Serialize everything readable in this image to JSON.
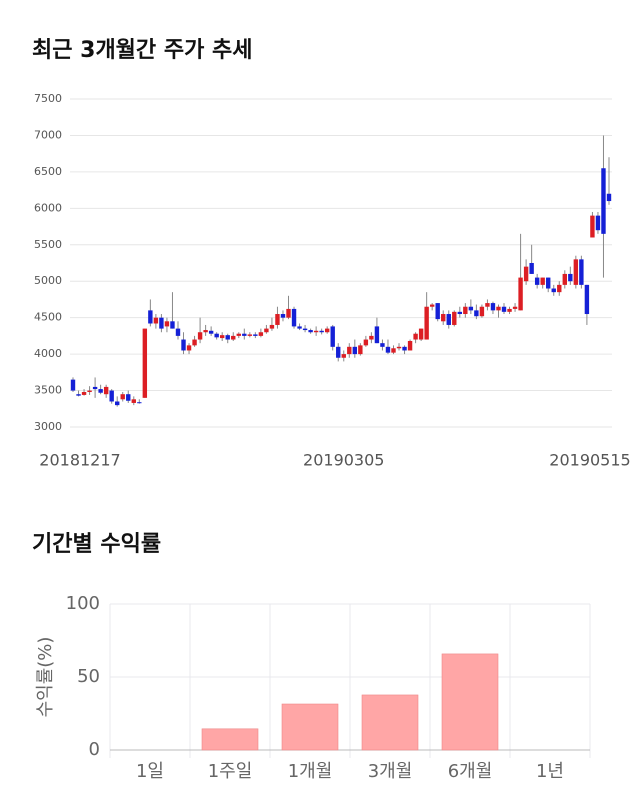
{
  "chart_data": [
    {
      "type": "candlestick",
      "title": "최근 3개월간 주가 추세",
      "categories": [
        "20181217",
        null,
        null,
        null,
        null,
        null,
        null,
        null,
        null,
        null,
        null,
        null,
        null,
        null,
        null,
        null,
        null,
        null,
        null,
        null,
        null,
        null,
        null,
        null,
        null,
        null,
        null,
        null,
        null,
        null,
        null,
        null,
        null,
        null,
        null,
        null,
        null,
        null,
        null,
        null,
        null,
        null,
        null,
        null,
        null,
        null,
        null,
        null,
        null,
        "20190305",
        null,
        null,
        null,
        null,
        null,
        null,
        null,
        null,
        null,
        null,
        null,
        null,
        null,
        null,
        null,
        null,
        null,
        null,
        null,
        null,
        null,
        null,
        null,
        null,
        null,
        null,
        null,
        null,
        null,
        null,
        null,
        null,
        null,
        null,
        null,
        null,
        null,
        null,
        null,
        null,
        null,
        null,
        null,
        null,
        null,
        null,
        null,
        "20190515"
      ],
      "open": [
        3650,
        3450,
        3440,
        3480,
        3550,
        3520,
        3450,
        3500,
        3350,
        3380,
        3450,
        3330,
        3340,
        3400,
        4600,
        4420,
        4500,
        4380,
        4450,
        4350,
        4200,
        4050,
        4120,
        4200,
        4300,
        4320,
        4280,
        4220,
        4260,
        4200,
        4250,
        4280,
        4250,
        4270,
        4250,
        4300,
        4350,
        4400,
        4550,
        4500,
        4620,
        4380,
        4350,
        4330,
        4300,
        4320,
        4300,
        4380,
        4100,
        3950,
        4000,
        4100,
        4000,
        4120,
        4200,
        4380,
        4150,
        4100,
        4020,
        4080,
        4100,
        4050,
        4200,
        4200,
        4200,
        4650,
        4700,
        4450,
        4550,
        4400,
        4580,
        4550,
        4650,
        4600,
        4520,
        4650,
        4700,
        4600,
        4650,
        4580,
        4620,
        4600,
        5000,
        5250,
        5050,
        4950,
        5050,
        4900,
        4850,
        4950,
        5100,
        4950,
        5300,
        4950,
        5600,
        5900,
        6550,
        6200
      ],
      "high": [
        3680,
        3500,
        3520,
        3560,
        3680,
        3580,
        3580,
        3520,
        3420,
        3480,
        3500,
        3420,
        3380,
        4350,
        4750,
        4550,
        4550,
        4500,
        4850,
        4450,
        4300,
        4150,
        4250,
        4500,
        4400,
        4380,
        4300,
        4300,
        4280,
        4300,
        4300,
        4350,
        4300,
        4300,
        4350,
        4400,
        4500,
        4650,
        4600,
        4800,
        4650,
        4420,
        4400,
        4350,
        4380,
        4350,
        4380,
        4400,
        4150,
        4050,
        4150,
        4200,
        4150,
        4250,
        4300,
        4500,
        4200,
        4200,
        4120,
        4150,
        4120,
        4200,
        4300,
        4350,
        4850,
        4700,
        4700,
        4600,
        4600,
        4600,
        4650,
        4700,
        4750,
        4680,
        4680,
        4750,
        4720,
        4680,
        4700,
        4650,
        4700,
        5650,
        5300,
        5500,
        5100,
        5050,
        5050,
        4950,
        5000,
        5150,
        5200,
        5350,
        5350,
        4950,
        5950,
        5950,
        7000,
        6700
      ],
      "low": [
        3480,
        3420,
        3430,
        3440,
        3400,
        3450,
        3400,
        3320,
        3280,
        3350,
        3330,
        3300,
        3320,
        3400,
        4380,
        4350,
        4300,
        4300,
        4350,
        4200,
        4000,
        4000,
        4100,
        4150,
        4250,
        4250,
        4200,
        4180,
        4150,
        4180,
        4220,
        4200,
        4230,
        4220,
        4230,
        4280,
        4320,
        4350,
        4450,
        4480,
        4350,
        4330,
        4300,
        4280,
        4250,
        4270,
        4280,
        4050,
        3900,
        3900,
        3950,
        3950,
        3980,
        4100,
        4150,
        4150,
        4050,
        4000,
        4000,
        4050,
        4000,
        4050,
        4150,
        4180,
        4200,
        4600,
        4450,
        4400,
        4350,
        4380,
        4500,
        4500,
        4550,
        4480,
        4500,
        4600,
        4550,
        4500,
        4550,
        4550,
        4580,
        4600,
        4950,
        5100,
        4900,
        4900,
        4850,
        4800,
        4800,
        4900,
        4950,
        4900,
        4900,
        4400,
        5600,
        5650,
        5050,
        6050
      ],
      "close": [
        3500,
        3430,
        3480,
        3500,
        3520,
        3470,
        3550,
        3350,
        3300,
        3450,
        3360,
        3380,
        3330,
        4350,
        4420,
        4500,
        4350,
        4450,
        4350,
        4250,
        4050,
        4120,
        4200,
        4300,
        4330,
        4280,
        4230,
        4260,
        4200,
        4250,
        4280,
        4250,
        4270,
        4250,
        4300,
        4350,
        4400,
        4550,
        4500,
        4620,
        4380,
        4350,
        4330,
        4300,
        4320,
        4300,
        4350,
        4100,
        3950,
        4000,
        4100,
        4000,
        4120,
        4200,
        4250,
        4150,
        4100,
        4020,
        4080,
        4100,
        4050,
        4180,
        4280,
        4350,
        4650,
        4680,
        4480,
        4550,
        4400,
        4580,
        4550,
        4650,
        4600,
        4520,
        4650,
        4700,
        4600,
        4650,
        4580,
        4620,
        4650,
        5050,
        5200,
        5100,
        4950,
        5050,
        4900,
        4850,
        4950,
        5100,
        5000,
        5300,
        4950,
        4550,
        5900,
        5700,
        5650,
        6100
      ],
      "up_color": "#dc1e24",
      "down_color": "#1420d6",
      "ylim": [
        3000,
        7500
      ],
      "yticks": [
        3000,
        3500,
        4000,
        4500,
        5000,
        5500,
        6000,
        6500,
        7000,
        7500
      ],
      "grid": true
    },
    {
      "type": "bar",
      "title": "기간별 수익률",
      "ylabel": "수익률(%)",
      "categories": [
        "1일",
        "1주일",
        "1개월",
        "3개월",
        "6개월",
        "1년"
      ],
      "values": [
        null,
        14.5,
        31.5,
        37.7,
        65.8,
        null
      ],
      "color": "#ffa6a6",
      "ylim": [
        0,
        100
      ],
      "yticks": [
        0,
        50,
        100
      ],
      "grid": true
    }
  ]
}
